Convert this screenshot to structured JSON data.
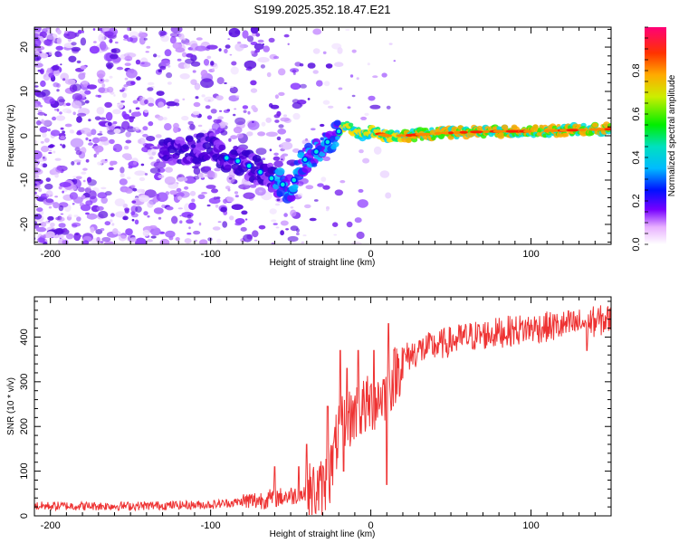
{
  "title": "S199.2025.352.18.47.E21",
  "chart_data": [
    {
      "type": "heatmap",
      "name": "spectrogram",
      "xlabel": "Height of straight line (km)",
      "ylabel": "Frequency (Hz)",
      "xlim": [
        -210,
        150
      ],
      "ylim": [
        -24.5,
        24.5
      ],
      "xticks": [
        -200,
        -100,
        0,
        100
      ],
      "yticks": [
        -20,
        -10,
        0,
        10,
        20
      ],
      "colorbar": {
        "label": "Normalized spectral amplitude",
        "range": [
          0,
          1
        ],
        "ticks": [
          0.0,
          0.2,
          0.4,
          0.6,
          0.8
        ]
      },
      "ridge": {
        "x": [
          -120,
          -110,
          -100,
          -90,
          -80,
          -70,
          -60,
          -50,
          -45,
          -40,
          -35,
          -30,
          -25,
          -20,
          -15,
          -10,
          -5,
          0,
          10,
          20,
          40,
          60,
          80,
          100,
          120,
          150
        ],
        "y": [
          -4,
          -3,
          -2,
          -5,
          -6,
          -8,
          -10,
          -12,
          -7,
          -5,
          -4,
          -2,
          -1,
          1,
          2,
          1,
          0,
          1,
          0,
          0,
          0.5,
          0.8,
          1,
          1,
          1.2,
          1.5
        ]
      }
    },
    {
      "type": "line",
      "name": "snr",
      "xlabel": "Height of straight line (km)",
      "ylabel": "SNR (10 * v/v)",
      "xlim": [
        -210,
        150
      ],
      "ylim": [
        0,
        490
      ],
      "xticks": [
        -200,
        -100,
        0,
        100
      ],
      "yticks": [
        0,
        100,
        200,
        300,
        400
      ],
      "color": "#ee3333",
      "trend": {
        "x": [
          -210,
          -150,
          -100,
          -70,
          -50,
          -40,
          -30,
          -25,
          -20,
          -10,
          0,
          10,
          20,
          30,
          40,
          60,
          80,
          100,
          120,
          150
        ],
        "y": [
          22,
          22,
          25,
          35,
          45,
          50,
          60,
          100,
          190,
          230,
          250,
          280,
          350,
          370,
          380,
          400,
          410,
          420,
          425,
          440
        ]
      },
      "spikes": [
        {
          "x": -60,
          "y": 110
        },
        {
          "x": -45,
          "y": 110
        },
        {
          "x": -40,
          "y": 160
        },
        {
          "x": -27,
          "y": 245
        },
        {
          "x": -19,
          "y": 370
        },
        {
          "x": -17,
          "y": 100
        },
        {
          "x": -15,
          "y": 330
        },
        {
          "x": -8,
          "y": 370
        },
        {
          "x": 2,
          "y": 370
        },
        {
          "x": 11,
          "y": 430
        },
        {
          "x": 10,
          "y": 70
        },
        {
          "x": 135,
          "y": 370
        }
      ]
    }
  ]
}
